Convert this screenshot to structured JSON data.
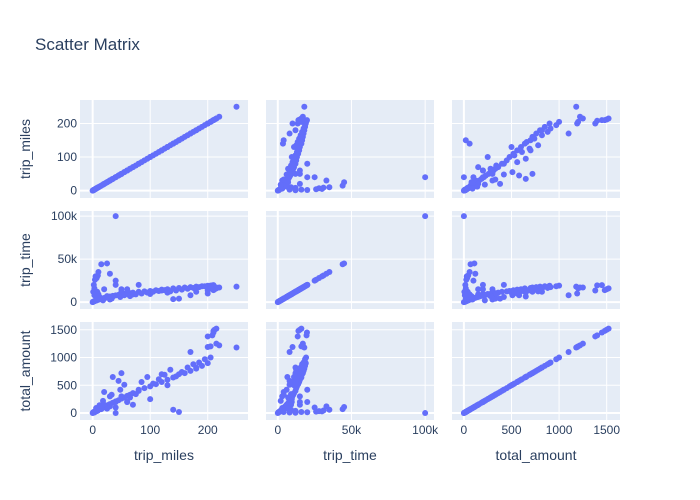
{
  "chart_data": {
    "type": "scatter",
    "title": "Scatter Matrix",
    "variables": [
      "trip_miles",
      "trip_time",
      "total_amount"
    ],
    "color": "#636efa",
    "grid": true,
    "ranges": {
      "trip_miles": [
        -22,
        270
      ],
      "trip_time": [
        -8000,
        106000
      ],
      "total_amount": [
        -125,
        1640
      ]
    },
    "ticks": {
      "trip_miles": [
        {
          "value": 0,
          "label": "0"
        },
        {
          "value": 100,
          "label": "100"
        },
        {
          "value": 200,
          "label": "200"
        }
      ],
      "trip_time": [
        {
          "value": 0,
          "label": "0"
        },
        {
          "value": 50000,
          "label": "50k"
        },
        {
          "value": 100000,
          "label": "100k"
        }
      ],
      "total_amount": [
        {
          "value": 0,
          "label": "0"
        },
        {
          "value": 500,
          "label": "500"
        },
        {
          "value": 1000,
          "label": "1000"
        },
        {
          "value": 1500,
          "label": "1500"
        }
      ]
    },
    "records": [
      [
        0,
        0,
        0
      ],
      [
        0.5,
        300,
        8
      ],
      [
        1,
        500,
        12
      ],
      [
        1.5,
        600,
        15
      ],
      [
        2,
        800,
        18
      ],
      [
        2.5,
        1000,
        22
      ],
      [
        3,
        1100,
        25
      ],
      [
        4,
        1400,
        30
      ],
      [
        5,
        1600,
        35
      ],
      [
        6,
        1900,
        40
      ],
      [
        7,
        2100,
        45
      ],
      [
        8,
        2400,
        50
      ],
      [
        10,
        2800,
        60
      ],
      [
        12,
        3200,
        70
      ],
      [
        15,
        3800,
        85
      ],
      [
        18,
        4300,
        100
      ],
      [
        20,
        4800,
        110
      ],
      [
        22,
        5100,
        120
      ],
      [
        25,
        5600,
        135
      ],
      [
        28,
        6100,
        150
      ],
      [
        30,
        6500,
        160
      ],
      [
        35,
        7200,
        185
      ],
      [
        40,
        7800,
        210
      ],
      [
        45,
        8500,
        230
      ],
      [
        50,
        9000,
        260
      ],
      [
        55,
        9600,
        280
      ],
      [
        60,
        10000,
        310
      ],
      [
        65,
        10500,
        330
      ],
      [
        70,
        11000,
        360
      ],
      [
        80,
        12000,
        400
      ],
      [
        90,
        12500,
        450
      ],
      [
        100,
        13000,
        480
      ],
      [
        110,
        13800,
        520
      ],
      [
        120,
        14500,
        560
      ],
      [
        130,
        15000,
        600
      ],
      [
        140,
        16000,
        640
      ],
      [
        150,
        16500,
        700
      ],
      [
        160,
        17000,
        720
      ],
      [
        170,
        17500,
        760
      ],
      [
        180,
        18000,
        800
      ],
      [
        190,
        18500,
        850
      ],
      [
        200,
        19000,
        900
      ],
      [
        205,
        19200,
        1000
      ],
      [
        208,
        19500,
        1400
      ],
      [
        210,
        19800,
        1450
      ],
      [
        212,
        15000,
        1500
      ],
      [
        215,
        16000,
        1520
      ],
      [
        250,
        18000,
        1180
      ],
      [
        45,
        8000,
        580
      ],
      [
        35,
        6500,
        650
      ],
      [
        20,
        4000,
        380
      ],
      [
        30,
        3000,
        300
      ],
      [
        60,
        9500,
        200
      ],
      [
        120,
        13500,
        700
      ],
      [
        150,
        4000,
        20
      ],
      [
        140,
        3500,
        60
      ],
      [
        40,
        100000,
        0
      ],
      [
        40,
        25000,
        100
      ],
      [
        60,
        15000,
        200
      ],
      [
        30,
        33000,
        120
      ],
      [
        25,
        45000,
        110
      ],
      [
        15,
        44000,
        70
      ],
      [
        10,
        35000,
        60
      ],
      [
        5,
        30000,
        30
      ],
      [
        180,
        12000,
        820
      ],
      [
        70,
        9000,
        150
      ],
      [
        100,
        9500,
        250
      ],
      [
        130,
        11000,
        500
      ],
      [
        50,
        15000,
        300
      ],
      [
        80,
        20000,
        420
      ],
      [
        10,
        9000,
        60
      ],
      [
        20,
        15000,
        150
      ],
      [
        40,
        20000,
        200
      ],
      [
        50,
        12000,
        720
      ],
      [
        170,
        8000,
        1100
      ],
      [
        200,
        10000,
        1190
      ],
      [
        220,
        17000,
        1220
      ],
      [
        8,
        12000,
        40
      ],
      [
        3,
        8000,
        10
      ],
      [
        6,
        3000,
        90
      ],
      [
        12,
        6000,
        140
      ],
      [
        18,
        2000,
        220
      ],
      [
        25,
        7000,
        80
      ],
      [
        33,
        4000,
        330
      ],
      [
        48,
        6000,
        420
      ],
      [
        55,
        8000,
        510
      ],
      [
        65,
        7000,
        280
      ],
      [
        75,
        9000,
        340
      ],
      [
        85,
        10000,
        560
      ],
      [
        95,
        11000,
        650
      ],
      [
        105,
        12000,
        530
      ],
      [
        115,
        13000,
        610
      ],
      [
        125,
        14000,
        690
      ],
      [
        135,
        12500,
        780
      ],
      [
        145,
        13500,
        660
      ],
      [
        155,
        14500,
        740
      ],
      [
        165,
        15500,
        820
      ],
      [
        175,
        16500,
        880
      ],
      [
        185,
        17500,
        910
      ],
      [
        195,
        18500,
        970
      ],
      [
        205,
        16000,
        1200
      ],
      [
        215,
        17000,
        1250
      ],
      [
        210,
        14000,
        1480
      ],
      [
        200,
        13500,
        1380
      ],
      [
        2,
        20000,
        15
      ],
      [
        4,
        26000,
        25
      ],
      [
        7,
        28000,
        35
      ],
      [
        9,
        31000,
        45
      ],
      [
        1,
        12000,
        5
      ],
      [
        3,
        16000,
        20
      ]
    ]
  }
}
